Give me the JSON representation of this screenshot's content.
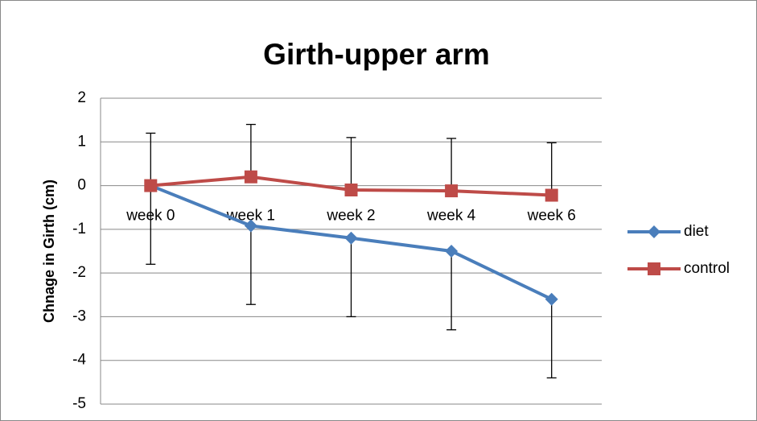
{
  "chart_data": {
    "type": "line",
    "title": "Girth-upper arm",
    "y_label": "Chnage in Girth  (cm)",
    "categories": [
      "week 0",
      "week 1",
      "week 2",
      "week 4",
      "week 6"
    ],
    "series": [
      {
        "name": "diet",
        "color": "#4a7ebb",
        "marker": "diamond",
        "values": [
          0,
          -0.92,
          -1.2,
          -1.5,
          -2.6
        ],
        "error_minus": 1.8
      },
      {
        "name": "control",
        "color": "#be4b48",
        "marker": "square",
        "values": [
          0,
          0.2,
          -0.1,
          -0.12,
          -0.22
        ],
        "error_plus": 1.2
      }
    ],
    "ylim": [
      -5,
      2
    ],
    "yticks": [
      -5,
      -4,
      -3,
      -2,
      -1,
      0,
      1,
      2
    ],
    "grid": true,
    "legend": "right"
  }
}
